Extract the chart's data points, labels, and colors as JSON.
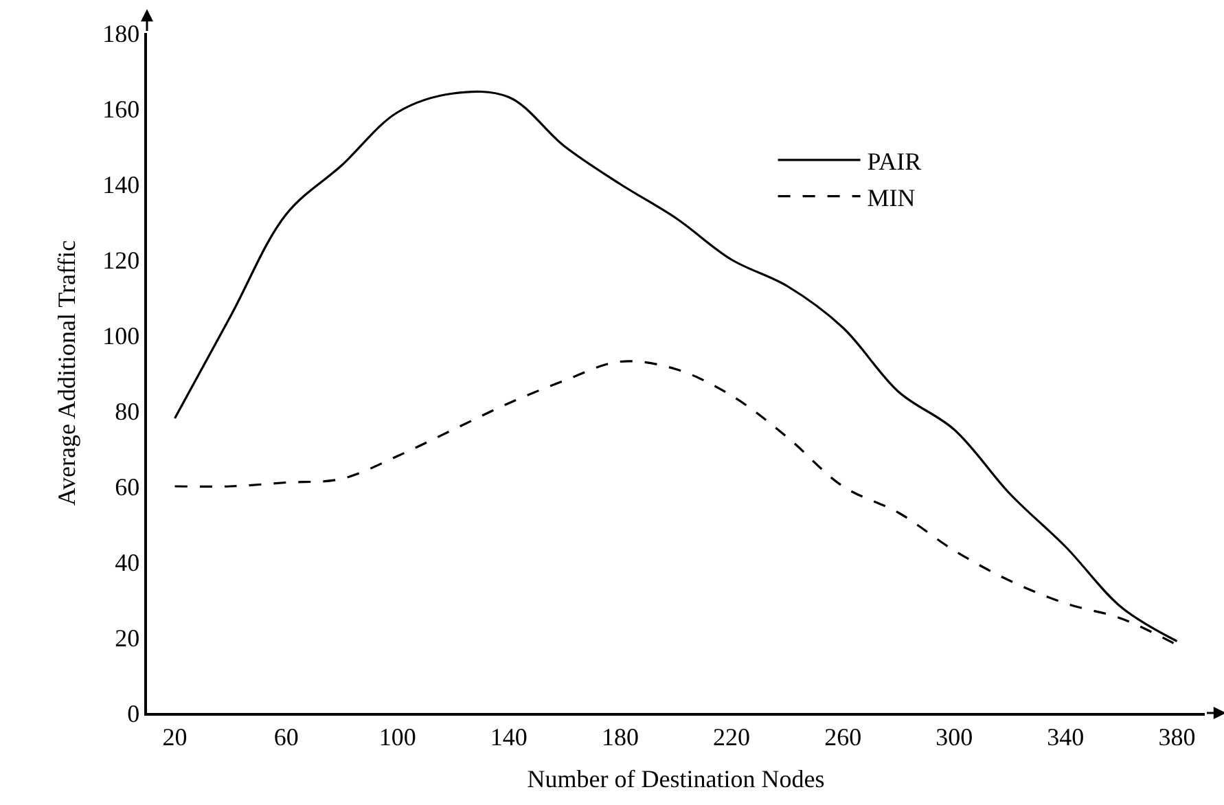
{
  "chart_data": {
    "type": "line",
    "xlabel": "Number of Destination Nodes",
    "ylabel": "Average Additional Traffic",
    "x": [
      20,
      40,
      60,
      80,
      100,
      120,
      140,
      160,
      180,
      200,
      220,
      240,
      260,
      280,
      300,
      320,
      340,
      360,
      380
    ],
    "series": [
      {
        "name": "PAIR",
        "color": "#000000",
        "line_style": "solid",
        "values": [
          78,
          105,
          132,
          145,
          159,
          164,
          163,
          150,
          140,
          131,
          120,
          113,
          102,
          85,
          75,
          58,
          44,
          28,
          19
        ]
      },
      {
        "name": "MIN",
        "color": "#000000",
        "line_style": "dashed",
        "values": [
          60,
          60,
          61,
          62,
          68,
          75,
          82,
          88,
          93,
          91,
          84,
          73,
          60,
          53,
          43,
          35,
          29,
          25,
          18
        ]
      }
    ],
    "xlim": [
      10,
      390
    ],
    "xticks": [
      20,
      60,
      100,
      140,
      180,
      220,
      260,
      300,
      340,
      380
    ],
    "ylim": [
      0,
      180
    ],
    "yticks": [
      0,
      20,
      40,
      60,
      80,
      100,
      120,
      140,
      160,
      180
    ],
    "legend": "top right",
    "marker": "none"
  }
}
